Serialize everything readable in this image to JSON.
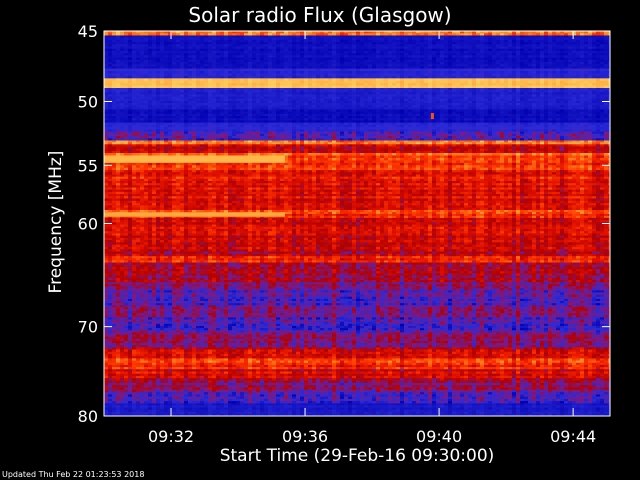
{
  "chart_data": {
    "type": "heatmap",
    "title": "Solar radio Flux (Glasgow)",
    "xlabel": "Start Time (29-Feb-16 09:30:00)",
    "ylabel": "Frequency [MHz]",
    "x_unit": "minutes after 09:30:00",
    "xlim": [
      0,
      15.1
    ],
    "ylim": [
      45,
      80
    ],
    "y_scale": "log",
    "y_inverted": true,
    "x_ticks": [
      {
        "value": 2,
        "label": "09:32"
      },
      {
        "value": 6,
        "label": "09:36"
      },
      {
        "value": 10,
        "label": "09:40"
      },
      {
        "value": 14,
        "label": "09:44"
      }
    ],
    "y_ticks": [
      {
        "value": 45,
        "label": "45"
      },
      {
        "value": 50,
        "label": "50"
      },
      {
        "value": 55,
        "label": "55"
      },
      {
        "value": 60,
        "label": "60"
      },
      {
        "value": 70,
        "label": "70"
      },
      {
        "value": 80,
        "label": "80"
      }
    ],
    "colormap": [
      "#0000b0",
      "#2a2ad8",
      "#7a1a8a",
      "#b00000",
      "#e01000",
      "#ff3a00",
      "#ff8a20",
      "#ffd060"
    ],
    "frequency_bands": [
      {
        "f0": 45.0,
        "f1": 45.3,
        "intensity": 0.78
      },
      {
        "f0": 45.3,
        "f1": 47.6,
        "intensity": 0.05
      },
      {
        "f0": 47.6,
        "f1": 48.3,
        "intensity": 0.13
      },
      {
        "f0": 48.3,
        "f1": 49.0,
        "intensity": 0.97
      },
      {
        "f0": 49.0,
        "f1": 50.6,
        "intensity": 0.1
      },
      {
        "f0": 50.6,
        "f1": 51.6,
        "intensity": 0.04
      },
      {
        "f0": 51.6,
        "f1": 52.3,
        "intensity": 0.14
      },
      {
        "f0": 52.3,
        "f1": 53.0,
        "intensity": 0.18
      },
      {
        "f0": 53.0,
        "f1": 53.3,
        "intensity": 0.82
      },
      {
        "f0": 53.3,
        "f1": 54.0,
        "intensity": 0.5
      },
      {
        "f0": 54.0,
        "f1": 54.6,
        "intensity": 0.72
      },
      {
        "f0": 54.6,
        "f1": 55.4,
        "intensity": 0.66
      },
      {
        "f0": 55.4,
        "f1": 57.6,
        "intensity": 0.58
      },
      {
        "f0": 57.6,
        "f1": 58.8,
        "intensity": 0.54
      },
      {
        "f0": 58.8,
        "f1": 59.5,
        "intensity": 0.7
      },
      {
        "f0": 59.5,
        "f1": 61.5,
        "intensity": 0.52
      },
      {
        "f0": 61.5,
        "f1": 63.0,
        "intensity": 0.45
      },
      {
        "f0": 63.0,
        "f1": 63.6,
        "intensity": 0.6
      },
      {
        "f0": 63.6,
        "f1": 65.5,
        "intensity": 0.38
      },
      {
        "f0": 65.5,
        "f1": 66.3,
        "intensity": 0.28
      },
      {
        "f0": 66.3,
        "f1": 67.8,
        "intensity": 0.2
      },
      {
        "f0": 67.8,
        "f1": 68.6,
        "intensity": 0.3
      },
      {
        "f0": 68.6,
        "f1": 70.6,
        "intensity": 0.22
      },
      {
        "f0": 70.6,
        "f1": 72.2,
        "intensity": 0.3
      },
      {
        "f0": 72.2,
        "f1": 73.4,
        "intensity": 0.48
      },
      {
        "f0": 73.4,
        "f1": 74.6,
        "intensity": 0.66
      },
      {
        "f0": 74.6,
        "f1": 75.6,
        "intensity": 0.52
      },
      {
        "f0": 75.6,
        "f1": 77.2,
        "intensity": 0.34
      },
      {
        "f0": 77.2,
        "f1": 78.5,
        "intensity": 0.2
      },
      {
        "f0": 78.5,
        "f1": 80.0,
        "intensity": 0.08
      }
    ],
    "time_segments": [
      {
        "t0": 0.0,
        "t1": 5.4,
        "f0": 54.2,
        "f1": 54.8,
        "intensity": 0.95
      },
      {
        "t0": 0.0,
        "t1": 5.4,
        "f0": 59.0,
        "f1": 59.4,
        "intensity": 0.92
      }
    ],
    "features": [
      {
        "t": 9.8,
        "f": 51.1,
        "intensity": 0.75
      }
    ]
  },
  "footer_text": "Updated Thu Feb 22 01:23:53 2018"
}
